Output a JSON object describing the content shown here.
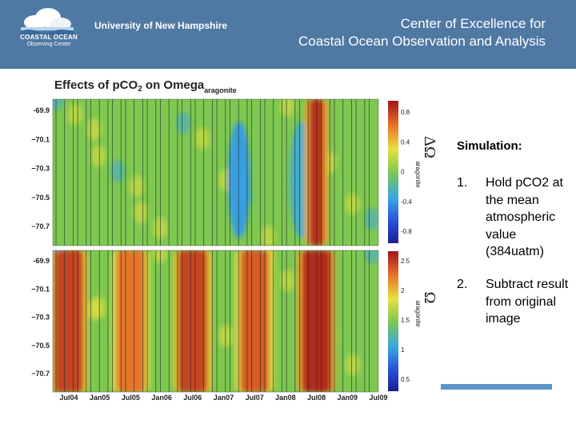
{
  "header": {
    "logo_line1": "COASTAL OCEAN",
    "logo_line2": "Observing Center",
    "university": "University of New Hampshire",
    "center_line1": "Center of Excellence for",
    "center_line2": "Coastal Ocean Observation and Analysis"
  },
  "figure": {
    "title_part1": "Effects of pCO",
    "title_sub": "2",
    "title_part2": " on Omega",
    "title_subscript": "aragonite"
  },
  "chart_data": [
    {
      "type": "heatmap",
      "panel": "top",
      "ylabel": "ΔΩ",
      "ylabel_sub": "aragonite",
      "y_ticks": [
        "-69.9",
        "−70.1",
        "−70.3",
        "−70.5",
        "−70.7"
      ],
      "colorbar_ticks": [
        "0.8",
        "0.4",
        "0",
        "-0.4",
        "-0.8"
      ],
      "colorbar_range": [
        -1.0,
        1.0
      ],
      "warm_bands": [
        {
          "x": "Jul08",
          "level": 0.9
        }
      ],
      "cool_bands": [
        {
          "x": "Apr07",
          "level": -0.4
        },
        {
          "x": "Apr08",
          "level": -0.3
        }
      ]
    },
    {
      "type": "heatmap",
      "panel": "bottom",
      "ylabel": "Ω",
      "ylabel_sub": "aragonite",
      "y_ticks": [
        "-69.9",
        "−70.1",
        "−70.3",
        "−70.5",
        "−70.7"
      ],
      "colorbar_ticks": [
        "2.5",
        "2",
        "1.5",
        "1",
        "0.5"
      ],
      "colorbar_range": [
        0.3,
        2.6
      ],
      "warm_bands": [
        {
          "x": "Jul04",
          "level": 2.4
        },
        {
          "x": "Jul05",
          "level": 2.2
        },
        {
          "x": "Jul06",
          "level": 2.4
        },
        {
          "x": "Jul07",
          "level": 2.3
        },
        {
          "x": "Jul08",
          "level": 2.5
        }
      ],
      "x_ticks": [
        "Jul04",
        "Jan05",
        "Jul05",
        "Jan06",
        "Jul06",
        "Jan07",
        "Jul07",
        "Jan08",
        "Jul08",
        "Jan09",
        "Jul09"
      ]
    }
  ],
  "simulation": {
    "title": "Simulation:",
    "steps": [
      {
        "num": "1.",
        "text": "Hold pCO2 at the mean atmospheric value (384uatm)"
      },
      {
        "num": "2.",
        "text": "Subtract result from original image"
      }
    ]
  },
  "colors": {
    "banner": "#4f78a3",
    "accent": "#5b94c8",
    "heat_base": "#7ec850"
  }
}
